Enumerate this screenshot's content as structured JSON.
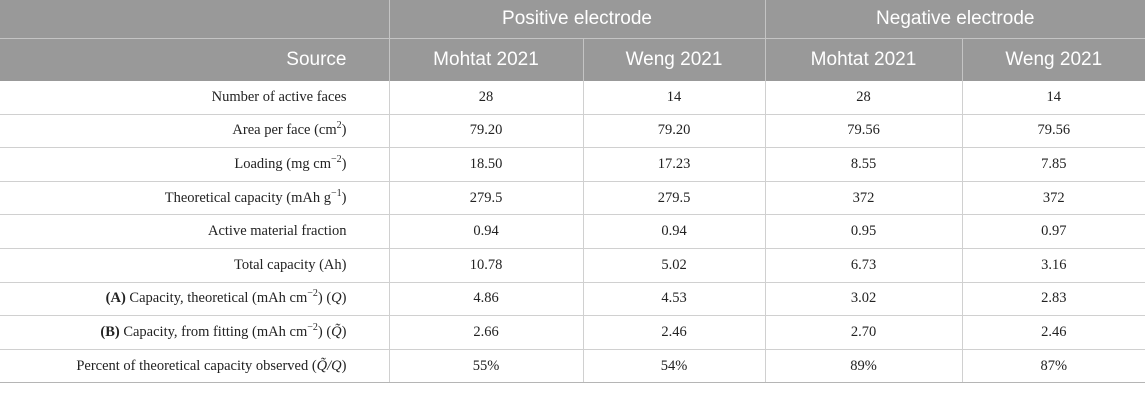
{
  "table": {
    "groups": [
      {
        "label": "",
        "span": 1
      },
      {
        "label": "Positive electrode",
        "span": 2
      },
      {
        "label": "Negative electrode",
        "span": 2
      }
    ],
    "columns": [
      "Source",
      "Mohtat 2021",
      "Weng 2021",
      "Mohtat 2021",
      "Weng 2021"
    ],
    "rows": [
      {
        "prefix": "",
        "label": "Number of active faces",
        "values": [
          "28",
          "14",
          "28",
          "14"
        ]
      },
      {
        "prefix": "",
        "label": "Area per face (cm",
        "sup": "2",
        "suffix": ")",
        "values": [
          "79.20",
          "79.20",
          "79.56",
          "79.56"
        ]
      },
      {
        "prefix": "",
        "label": "Loading (mg cm",
        "sup": "−2",
        "suffix": ")",
        "values": [
          "18.50",
          "17.23",
          "8.55",
          "7.85"
        ]
      },
      {
        "prefix": "",
        "label": "Theoretical capacity (mAh g",
        "sup": "−1",
        "suffix": ")",
        "values": [
          "279.5",
          "279.5",
          "372",
          "372"
        ]
      },
      {
        "prefix": "",
        "label": "Active material fraction",
        "values": [
          "0.94",
          "0.94",
          "0.95",
          "0.97"
        ]
      },
      {
        "prefix": "",
        "label": "Total capacity (Ah)",
        "values": [
          "10.78",
          "5.02",
          "6.73",
          "3.16"
        ]
      },
      {
        "prefix": "(A)",
        "label": " Capacity, theoretical (mAh cm",
        "sup": "−2",
        "suffix": ") (",
        "ital": "Q",
        "tail": ")",
        "values": [
          "4.86",
          "4.53",
          "3.02",
          "2.83"
        ]
      },
      {
        "prefix": "(B)",
        "label": " Capacity, from fitting (mAh cm",
        "sup": "−2",
        "suffix": ") (",
        "ital": "Q̃",
        "tail": ")",
        "values": [
          "2.66",
          "2.46",
          "2.70",
          "2.46"
        ]
      },
      {
        "prefix": "",
        "label": "Percent of theoretical capacity observed (",
        "ital": "Q̃/Q",
        "tail": ")",
        "values": [
          "55%",
          "54%",
          "89%",
          "87%"
        ]
      }
    ]
  }
}
